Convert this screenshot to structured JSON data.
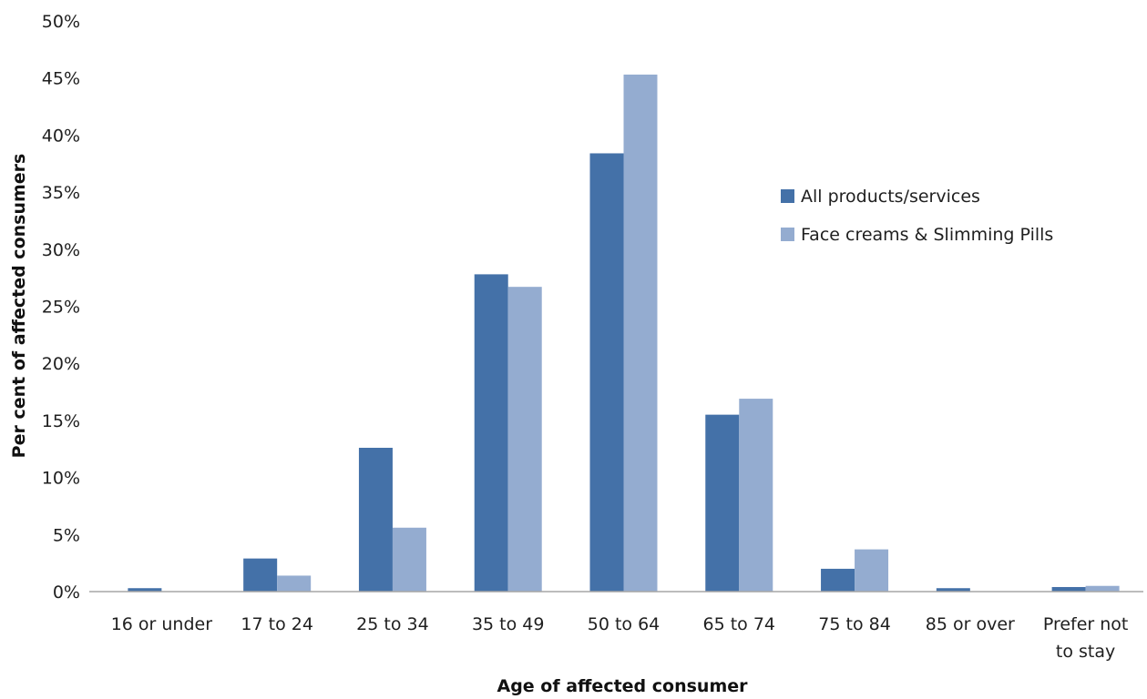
{
  "chart_data": {
    "type": "bar",
    "title": "",
    "xlabel": "Age of affected consumer",
    "ylabel": "Per cent of affected consumers",
    "ylim": [
      0,
      50
    ],
    "yticks": [
      "0%",
      "5%",
      "10%",
      "15%",
      "20%",
      "25%",
      "30%",
      "35%",
      "40%",
      "45%",
      "50%"
    ],
    "grid": false,
    "legend_position": "right",
    "categories": [
      [
        "16 or under"
      ],
      [
        "17 to 24"
      ],
      [
        "25 to 34"
      ],
      [
        "35 to 49"
      ],
      [
        "50 to 64"
      ],
      [
        "65 to 74"
      ],
      [
        "75 to 84"
      ],
      [
        "85 or over"
      ],
      [
        "Prefer not",
        "to stay"
      ]
    ],
    "series": [
      {
        "name": "All products/services",
        "color": "#4471a8",
        "values": [
          0.3,
          2.9,
          12.6,
          27.8,
          38.4,
          15.5,
          2.0,
          0.3,
          0.4
        ]
      },
      {
        "name": "Face creams & Slimming Pills",
        "color": "#94acd0",
        "values": [
          0,
          1.4,
          5.6,
          26.7,
          45.3,
          16.9,
          3.7,
          0,
          0.5
        ]
      }
    ]
  }
}
